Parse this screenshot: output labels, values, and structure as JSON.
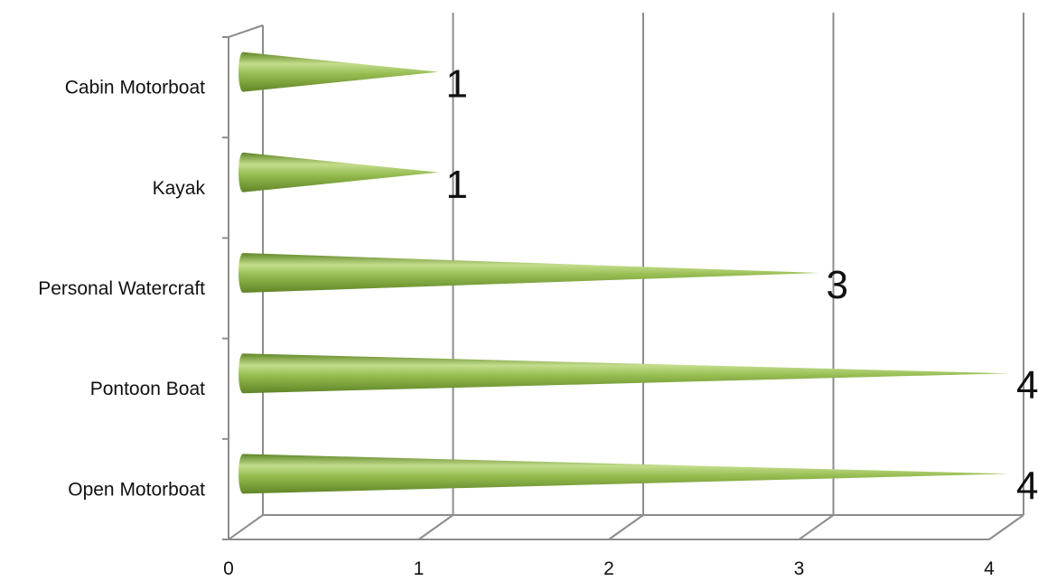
{
  "chart_data": {
    "type": "bar",
    "orientation": "horizontal",
    "style": "3d-cone",
    "categories": [
      "Open Motorboat",
      "Pontoon Boat",
      "Personal Watercraft",
      "Kayak",
      "Cabin Motorboat"
    ],
    "values": [
      4,
      4,
      3,
      1,
      1
    ],
    "xticks": [
      0,
      1,
      2,
      3,
      4
    ],
    "xlim": [
      0,
      4
    ],
    "title": "",
    "xlabel": "",
    "ylabel": "",
    "grid": true,
    "legend": "none",
    "colors": {
      "bar_light": "#c3dd8c",
      "bar_mid": "#97bd52",
      "bar_dark": "#5f8526",
      "axis": "#8c8c8c",
      "grid": "#8c8c8c"
    }
  }
}
